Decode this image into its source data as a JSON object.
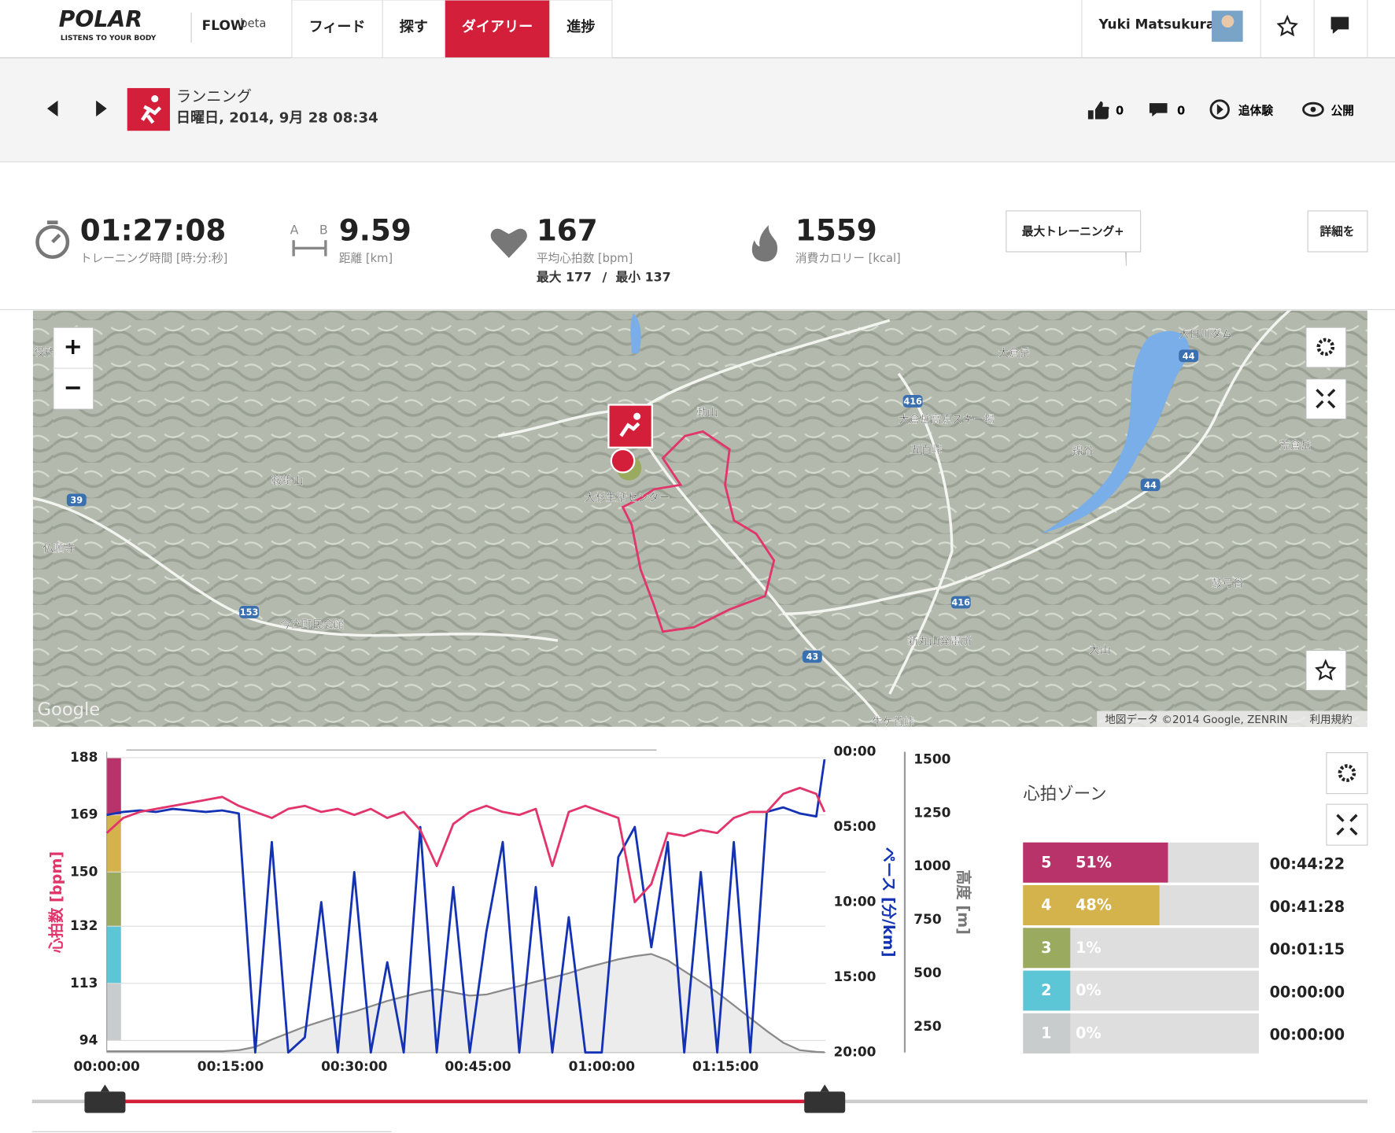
{
  "nav": {
    "logo": "POLAR",
    "tagline": "LISTENS TO YOUR BODY",
    "product": "FLOW",
    "beta": "beta",
    "items": [
      "フィード",
      "探す",
      "ダイアリー",
      "進捗"
    ],
    "user": "Yuki Matsukura"
  },
  "session": {
    "activity": "ランニング",
    "date": "日曜日, 2014, 9月 28 08:34",
    "likes": "0",
    "comments": "0",
    "relive": "追体験",
    "visibility": "公開"
  },
  "summary": {
    "duration": "01:27:08",
    "duration_label": "トレーニング時間 [時:分:秒]",
    "distance_marker_a": "A",
    "distance_marker_b": "B",
    "distance": "9.59",
    "distance_label": "距離 [km]",
    "heart_rate": "167",
    "heart_rate_label": "平均心拍数 [bpm]",
    "heart_rate_max": "最大 177",
    "heart_rate_separator": "/",
    "heart_rate_min": "最小 137",
    "calories": "1559",
    "calories_label": "消費カロリー [kcal]",
    "training_button": "最大トレーニング+",
    "details_button": "詳細を"
  },
  "map": {
    "labels": [
      "大日川ダム",
      "大倉岳",
      "大倉岳高原スキー場",
      "五百峠",
      "綿谷",
      "荒倉岳",
      "動山",
      "鞍掛山",
      "大杉生活センター",
      "仏願寺",
      "今立町民会館",
      "新丸山発電所",
      "大山",
      "鼓弓谷",
      "牛ケ首峠",
      "役所"
    ],
    "road_numbers": [
      "416",
      "44",
      "44",
      "39",
      "153",
      "43",
      "416"
    ],
    "attribution": "地図データ ©2014 Google, ZENRIN",
    "terms": "利用規約",
    "brand": "Google"
  },
  "chart_data": [
    {
      "type": "line",
      "x_label": null,
      "y_label": "心拍数 [bpm]",
      "y2_label": "ペース [分/km]",
      "y3_label": "高度 [m]",
      "x": [
        0,
        2,
        4,
        6,
        8,
        10,
        12,
        14,
        16,
        18,
        20,
        22,
        24,
        26,
        28,
        30,
        32,
        34,
        36,
        38,
        40,
        42,
        44,
        46,
        48,
        50,
        52,
        54,
        56,
        58,
        60,
        62,
        64,
        66,
        68,
        70,
        72,
        74,
        76,
        78,
        80,
        82,
        84,
        86,
        87
      ],
      "xlim": [
        0,
        87.13
      ],
      "xticks": [
        {
          "value": 0,
          "label": "00:00:00"
        },
        {
          "value": 15,
          "label": "00:15:00"
        },
        {
          "value": 30,
          "label": "00:30:00"
        },
        {
          "value": 45,
          "label": "00:45:00"
        },
        {
          "value": 60,
          "label": "01:00:00"
        },
        {
          "value": 75,
          "label": "01:15:00"
        }
      ],
      "ylim": [
        90,
        190
      ],
      "yticks": [
        94,
        113,
        132,
        150,
        169,
        188
      ],
      "y2lim": [
        0,
        20
      ],
      "y2_inverted": true,
      "y2ticks": [
        {
          "value": 0,
          "label": "00:00"
        },
        {
          "value": 5,
          "label": "05:00"
        },
        {
          "value": 10,
          "label": "10:00"
        },
        {
          "value": 15,
          "label": "15:00"
        },
        {
          "value": 20,
          "label": "20:00"
        }
      ],
      "y3lim": [
        129,
        1537
      ],
      "y3ticks": [
        250,
        500,
        750,
        1000,
        1250,
        1500
      ],
      "grid": true,
      "series": [
        {
          "name": "心拍数",
          "color": "#e2356b",
          "values": [
            163,
            168,
            170,
            171,
            172,
            173,
            174,
            175,
            172,
            170,
            168,
            171,
            172,
            170,
            171,
            169,
            171,
            168,
            170,
            164,
            152,
            166,
            170,
            172,
            170,
            169,
            171,
            152,
            170,
            172,
            170,
            168,
            140,
            146,
            163,
            162,
            164,
            163,
            168,
            170,
            170,
            176,
            178,
            176,
            170
          ]
        },
        {
          "name": "ペース",
          "color": "#1432b4",
          "axis": "y2",
          "values": [
            4.2,
            4.0,
            3.9,
            4.0,
            3.8,
            3.9,
            4.0,
            3.9,
            4.1,
            20,
            6,
            20,
            19,
            10,
            20,
            8,
            20,
            14,
            20,
            5,
            20,
            9,
            20,
            12,
            6,
            20,
            9,
            20,
            11,
            20,
            20,
            7,
            5,
            13,
            6,
            20,
            8,
            20,
            6,
            20,
            4.0,
            3.7,
            4.1,
            4.3,
            0.5
          ]
        },
        {
          "name": "高度",
          "color": "#8a8a8a",
          "axis": "y3",
          "values": [
            135,
            135,
            135,
            135,
            135,
            135,
            135,
            135,
            140,
            155,
            190,
            220,
            250,
            275,
            300,
            320,
            345,
            370,
            390,
            410,
            425,
            410,
            395,
            400,
            420,
            440,
            460,
            480,
            500,
            525,
            545,
            565,
            580,
            590,
            560,
            510,
            460,
            410,
            350,
            290,
            230,
            175,
            140,
            132,
            130
          ]
        }
      ]
    },
    {
      "type": "hbar",
      "title": "心拍ゾーン",
      "categories": [
        "5",
        "4",
        "3",
        "2",
        "1"
      ],
      "values": [
        51,
        48,
        1,
        0,
        0
      ],
      "value_labels": [
        "51%",
        "48%",
        "1%",
        "0%",
        "0%"
      ],
      "durations": [
        "00:44:22",
        "00:41:28",
        "00:01:15",
        "00:00:00",
        "00:00:00"
      ],
      "colors": [
        "#b8336a",
        "#d4b24c",
        "#9aab5f",
        "#5cc6d6",
        "#c9cccc"
      ],
      "xlim": [
        0,
        83
      ]
    }
  ]
}
